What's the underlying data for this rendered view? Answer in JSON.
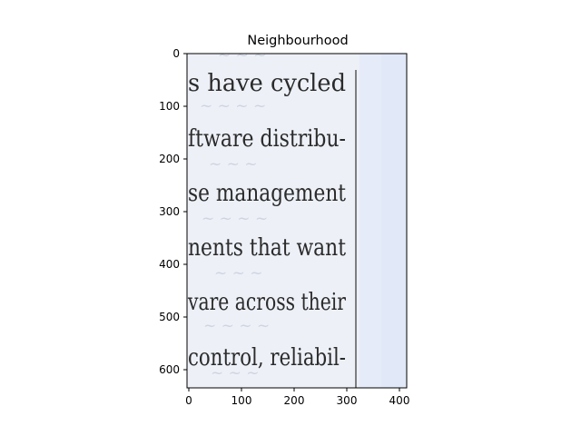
{
  "figure": {
    "title": "Neighbourhood",
    "x_ticks": [
      "0",
      "100",
      "200",
      "300",
      "400"
    ],
    "y_ticks": [
      "0",
      "100",
      "200",
      "300",
      "400",
      "500",
      "600"
    ],
    "x_range": [
      0,
      416
    ],
    "y_range": [
      636,
      0
    ]
  },
  "image": {
    "background_color": "#e5ebf8",
    "text_color": "#2b2b2b",
    "lines": [
      "s have cycled",
      "ftware distribu-",
      "se management",
      "nents that want",
      "vare across their",
      "control, reliabil-"
    ]
  }
}
